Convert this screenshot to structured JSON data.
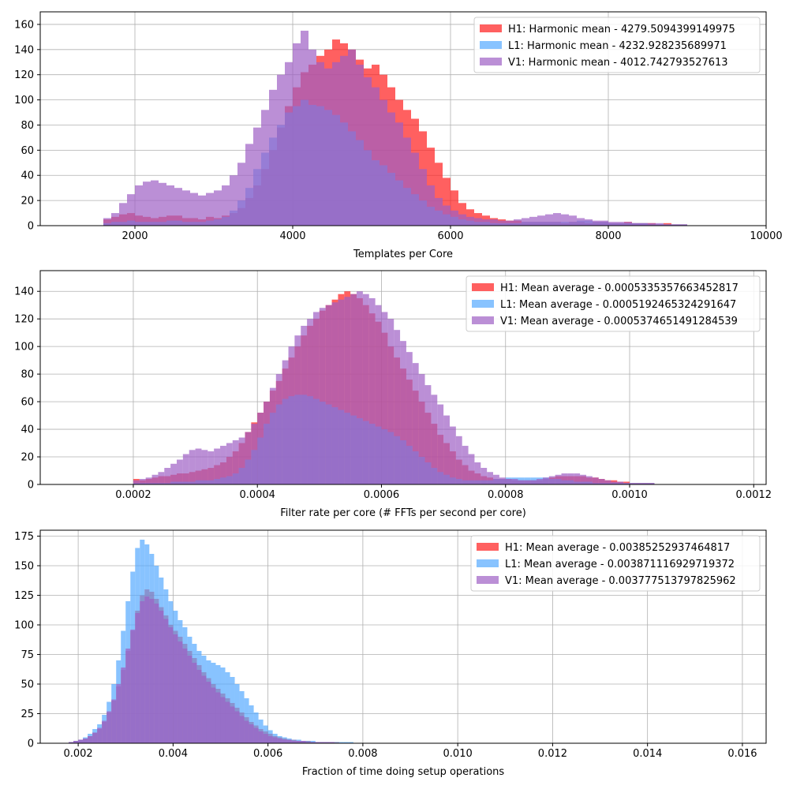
{
  "colors": {
    "H1": "#ff1c1c",
    "L1": "#56aaff",
    "V1": "#9e5fc4",
    "grid": "#b0b0b0",
    "axis": "#000000"
  },
  "chart_data": [
    {
      "type": "histogram",
      "xlabel": "Templates per Core",
      "ylabel": "",
      "xlim": [
        800,
        10000
      ],
      "ylim": [
        0,
        170
      ],
      "xticks": [
        2000,
        4000,
        6000,
        8000,
        10000
      ],
      "xtick_labels": [
        "2000",
        "4000",
        "6000",
        "8000",
        "10000"
      ],
      "yticks": [
        0,
        20,
        40,
        60,
        80,
        100,
        120,
        140,
        160
      ],
      "ytick_labels": [
        "0",
        "20",
        "40",
        "60",
        "80",
        "100",
        "120",
        "140",
        "160"
      ],
      "grid": true,
      "legend_position": "top-right",
      "bin_range": [
        1600,
        9000
      ],
      "bin_count": 74,
      "series": [
        {
          "name": "H1: Harmonic mean  - 4279.5094399149975",
          "key": "H1",
          "counts": [
            5,
            7,
            9,
            10,
            8,
            7,
            6,
            7,
            8,
            8,
            6,
            6,
            5,
            7,
            6,
            8,
            10,
            14,
            22,
            32,
            45,
            60,
            78,
            95,
            110,
            122,
            128,
            135,
            140,
            148,
            145,
            140,
            132,
            125,
            128,
            120,
            110,
            100,
            92,
            85,
            75,
            62,
            50,
            38,
            28,
            18,
            13,
            10,
            8,
            6,
            5,
            4,
            4,
            3,
            3,
            3,
            3,
            3,
            2,
            3,
            3,
            2,
            3,
            3,
            2,
            2,
            3,
            2,
            2,
            2,
            1,
            2,
            1,
            1
          ]
        },
        {
          "name": "L1: Harmonic mean  - 4232.928235689971",
          "key": "L1",
          "counts": [
            2,
            3,
            3,
            4,
            3,
            3,
            3,
            3,
            4,
            4,
            3,
            3,
            3,
            4,
            5,
            7,
            12,
            20,
            30,
            45,
            58,
            70,
            80,
            90,
            95,
            100,
            96,
            95,
            92,
            88,
            82,
            75,
            68,
            60,
            52,
            48,
            42,
            36,
            30,
            25,
            20,
            15,
            12,
            9,
            7,
            5,
            4,
            3,
            3,
            2,
            2,
            2,
            2,
            3,
            3,
            3,
            3,
            3,
            3,
            3,
            4,
            4,
            3,
            3,
            2,
            2,
            2,
            2,
            2,
            1,
            1,
            1,
            1,
            1
          ]
        },
        {
          "name": "V1: Harmonic mean  - 4012.742793527613",
          "key": "V1",
          "counts": [
            6,
            10,
            18,
            25,
            32,
            35,
            36,
            34,
            32,
            30,
            28,
            26,
            24,
            26,
            28,
            32,
            40,
            50,
            65,
            78,
            92,
            108,
            120,
            130,
            145,
            155,
            140,
            130,
            125,
            130,
            135,
            140,
            128,
            118,
            110,
            100,
            90,
            82,
            70,
            58,
            45,
            32,
            22,
            16,
            12,
            9,
            7,
            6,
            5,
            5,
            4,
            4,
            5,
            6,
            7,
            8,
            9,
            10,
            9,
            8,
            6,
            5,
            4,
            4,
            3,
            3,
            3,
            2,
            2,
            2,
            2,
            1,
            1,
            1
          ]
        }
      ]
    },
    {
      "type": "histogram",
      "xlabel": "Filter rate per core (# FFTs per second per core)",
      "ylabel": "",
      "xlim": [
        5e-05,
        0.00122
      ],
      "ylim": [
        0,
        155
      ],
      "xticks": [
        0.0002,
        0.0004,
        0.0006,
        0.0008,
        0.001,
        0.0012
      ],
      "xtick_labels": [
        "0.0002",
        "0.0004",
        "0.0006",
        "0.0008",
        "0.0010",
        "0.0012"
      ],
      "yticks": [
        0,
        20,
        40,
        60,
        80,
        100,
        120,
        140
      ],
      "ytick_labels": [
        "0",
        "20",
        "40",
        "60",
        "80",
        "100",
        "120",
        "140"
      ],
      "grid": true,
      "legend_position": "top-right",
      "bin_range": [
        0.0002,
        0.00104
      ],
      "bin_count": 84,
      "series": [
        {
          "name": "H1: Mean average - 0.0005335357663452817",
          "key": "H1",
          "counts": [
            4,
            3,
            4,
            5,
            6,
            6,
            7,
            8,
            8,
            9,
            10,
            11,
            12,
            14,
            16,
            20,
            24,
            30,
            38,
            45,
            52,
            60,
            68,
            75,
            84,
            92,
            100,
            108,
            115,
            120,
            126,
            130,
            134,
            138,
            140,
            138,
            135,
            130,
            124,
            118,
            110,
            100,
            92,
            84,
            76,
            68,
            60,
            52,
            44,
            36,
            30,
            24,
            18,
            14,
            10,
            8,
            6,
            5,
            4,
            4,
            4,
            3,
            3,
            3,
            3,
            3,
            4,
            5,
            6,
            6,
            6,
            6,
            6,
            5,
            5,
            4,
            3,
            3,
            2,
            2,
            1,
            1,
            1,
            1
          ]
        },
        {
          "name": "L1: Mean average - 0.0005192465324291647",
          "key": "L1",
          "counts": [
            1,
            1,
            1,
            1,
            1,
            1,
            2,
            2,
            2,
            2,
            3,
            3,
            3,
            4,
            5,
            6,
            8,
            12,
            18,
            25,
            34,
            44,
            52,
            58,
            62,
            64,
            65,
            65,
            64,
            62,
            60,
            58,
            56,
            54,
            52,
            50,
            48,
            46,
            44,
            42,
            40,
            38,
            35,
            32,
            28,
            24,
            20,
            16,
            12,
            9,
            7,
            5,
            4,
            3,
            3,
            3,
            3,
            3,
            4,
            4,
            5,
            5,
            5,
            5,
            5,
            5,
            5,
            4,
            4,
            3,
            3,
            2,
            2,
            2,
            1,
            1,
            1,
            1,
            1,
            1,
            1,
            1,
            1,
            1
          ]
        },
        {
          "name": "V1: Mean average - 0.0005374651491284539",
          "key": "V1",
          "counts": [
            3,
            4,
            5,
            7,
            9,
            12,
            15,
            18,
            22,
            25,
            26,
            25,
            24,
            26,
            28,
            30,
            32,
            34,
            38,
            44,
            52,
            60,
            70,
            80,
            90,
            100,
            108,
            115,
            120,
            125,
            128,
            130,
            132,
            134,
            136,
            138,
            140,
            138,
            135,
            130,
            125,
            120,
            112,
            104,
            96,
            88,
            80,
            72,
            65,
            58,
            50,
            42,
            35,
            28,
            22,
            16,
            12,
            9,
            7,
            5,
            4,
            4,
            3,
            3,
            3,
            4,
            5,
            6,
            7,
            8,
            8,
            8,
            7,
            6,
            5,
            4,
            3,
            2,
            2,
            1,
            1,
            1,
            1,
            1
          ]
        }
      ]
    },
    {
      "type": "histogram",
      "xlabel": "Fraction of time doing setup operations",
      "ylabel": "",
      "xlim": [
        0.0012,
        0.0165
      ],
      "ylim": [
        0,
        180
      ],
      "xticks": [
        0.002,
        0.004,
        0.006,
        0.008,
        0.01,
        0.012,
        0.014,
        0.016
      ],
      "xtick_labels": [
        "0.002",
        "0.004",
        "0.006",
        "0.008",
        "0.010",
        "0.012",
        "0.014",
        "0.016"
      ],
      "yticks": [
        0,
        25,
        50,
        75,
        100,
        125,
        150,
        175
      ],
      "ytick_labels": [
        "0",
        "25",
        "50",
        "75",
        "100",
        "125",
        "150",
        "175"
      ],
      "grid": true,
      "legend_position": "top-right",
      "bin_range": [
        0.0018,
        0.0078
      ],
      "bin_count": 60,
      "series": [
        {
          "name": "H1: Mean average - 0.00385252937464817",
          "key": "H1",
          "counts": [
            1,
            2,
            3,
            4,
            6,
            9,
            12,
            18,
            26,
            36,
            48,
            62,
            78,
            95,
            112,
            125,
            130,
            128,
            122,
            115,
            108,
            100,
            95,
            90,
            84,
            78,
            72,
            66,
            60,
            55,
            50,
            46,
            42,
            38,
            34,
            30,
            26,
            22,
            18,
            15,
            12,
            10,
            8,
            6,
            5,
            4,
            3,
            3,
            2,
            2,
            2,
            1,
            1,
            1,
            1,
            1,
            1,
            0,
            0,
            0
          ]
        },
        {
          "name": "L1: Mean average - 0.003871116929719372",
          "key": "L1",
          "counts": [
            1,
            2,
            3,
            5,
            8,
            12,
            16,
            24,
            35,
            50,
            70,
            95,
            120,
            145,
            165,
            172,
            168,
            160,
            150,
            140,
            130,
            120,
            112,
            104,
            98,
            90,
            84,
            78,
            74,
            70,
            68,
            66,
            64,
            60,
            56,
            50,
            44,
            38,
            32,
            26,
            20,
            15,
            11,
            8,
            6,
            5,
            4,
            3,
            3,
            2,
            2,
            2,
            1,
            1,
            1,
            1,
            1,
            1,
            1,
            1
          ]
        },
        {
          "name": "V1: Mean average - 0.003777513797825962",
          "key": "V1",
          "counts": [
            1,
            2,
            3,
            4,
            6,
            9,
            13,
            19,
            27,
            37,
            50,
            64,
            80,
            96,
            110,
            120,
            124,
            122,
            118,
            112,
            105,
            98,
            92,
            86,
            80,
            74,
            68,
            62,
            57,
            52,
            47,
            43,
            39,
            35,
            31,
            27,
            23,
            19,
            16,
            13,
            10,
            8,
            6,
            5,
            4,
            3,
            3,
            2,
            2,
            2,
            1,
            1,
            1,
            1,
            1,
            1,
            0,
            0,
            0,
            0
          ]
        }
      ]
    }
  ]
}
